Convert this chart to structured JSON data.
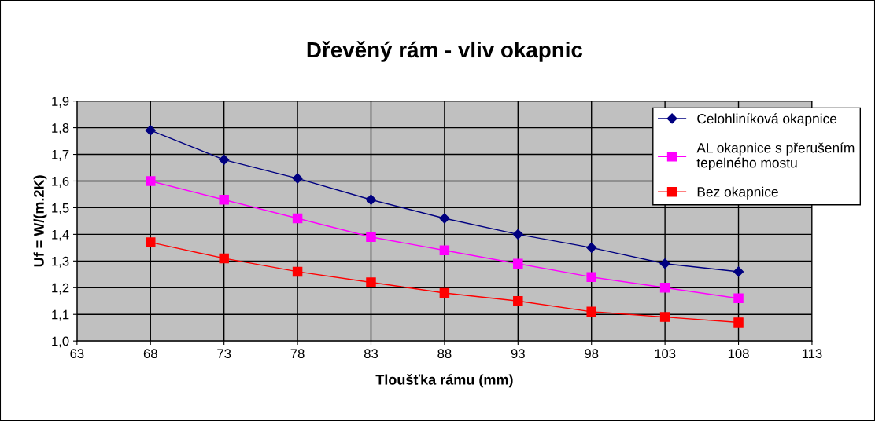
{
  "chart_data": {
    "type": "line",
    "title": "Dřevěný rám - vliv okapnic",
    "xlabel": "Tloušťka rámu (mm)",
    "ylabel": "Uf = W/(m.2K)",
    "x": [
      68,
      73,
      78,
      83,
      88,
      93,
      98,
      103,
      108
    ],
    "series": [
      {
        "name": "Celohliníková okapnice",
        "color": "#000080",
        "marker": "diamond",
        "values": [
          1.79,
          1.68,
          1.61,
          1.53,
          1.46,
          1.4,
          1.35,
          1.29,
          1.26
        ]
      },
      {
        "name": "AL okapnice s přerušením\ntepelného mostu",
        "color": "#ff00ff",
        "marker": "square",
        "values": [
          1.6,
          1.53,
          1.46,
          1.39,
          1.34,
          1.29,
          1.24,
          1.2,
          1.16
        ]
      },
      {
        "name": "Bez okapnice",
        "color": "#ff0000",
        "marker": "square",
        "values": [
          1.37,
          1.31,
          1.26,
          1.22,
          1.18,
          1.15,
          1.11,
          1.09,
          1.07
        ]
      }
    ],
    "xlim": [
      63,
      113
    ],
    "xticks": [
      63,
      68,
      73,
      78,
      83,
      88,
      93,
      98,
      103,
      108,
      113
    ],
    "ylim": [
      1.0,
      1.9
    ],
    "yticks": [
      {
        "value": 1.0,
        "label": "1,0"
      },
      {
        "value": 1.1,
        "label": "1,1"
      },
      {
        "value": 1.2,
        "label": "1,2"
      },
      {
        "value": 1.3,
        "label": "1,3"
      },
      {
        "value": 1.4,
        "label": "1,4"
      },
      {
        "value": 1.5,
        "label": "1,5"
      },
      {
        "value": 1.6,
        "label": "1,6"
      },
      {
        "value": 1.7,
        "label": "1,7"
      },
      {
        "value": 1.8,
        "label": "1,8"
      },
      {
        "value": 1.9,
        "label": "1,9"
      }
    ],
    "grid": true,
    "legend": "top right",
    "line_style": "solid"
  }
}
